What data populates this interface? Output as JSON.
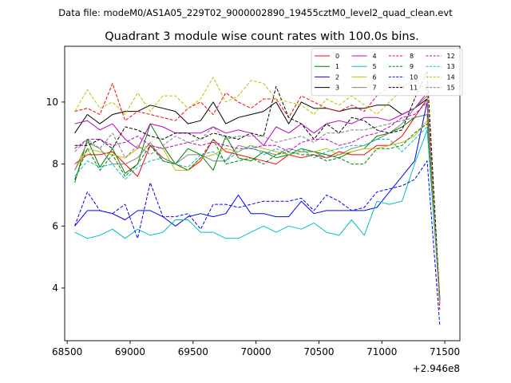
{
  "chart_data": {
    "type": "line",
    "suptitle": "Data file: modeM0/AS1A05_229T02_9000002890_19455cztM0_level2_quad_clean.evt",
    "title": "Quadrant 3 module wise count rates with 100.0s bins.",
    "xlabel": "",
    "ylabel": "",
    "x_offset_label": "+2.946e8",
    "xlim": [
      68480,
      71620
    ],
    "ylim": [
      2.3,
      11.8
    ],
    "xticks": [
      68500,
      69000,
      69500,
      70000,
      70500,
      71000,
      71500
    ],
    "yticks": [
      4,
      6,
      8,
      10
    ],
    "x": [
      68560,
      68660,
      68760,
      68860,
      68960,
      69060,
      69160,
      69260,
      69360,
      69460,
      69560,
      69660,
      69760,
      69860,
      69960,
      70060,
      70160,
      70260,
      70360,
      70460,
      70560,
      70660,
      70760,
      70860,
      70960,
      71060,
      71160,
      71260,
      71360,
      71460
    ],
    "legend": {
      "position": "top-right",
      "ncol": 4
    },
    "series": [
      {
        "name": "0",
        "color": "#ff0000",
        "dash": "solid",
        "values": [
          8.0,
          8.3,
          8.3,
          8.4,
          8.0,
          7.6,
          8.6,
          8.2,
          8.0,
          7.8,
          8.1,
          8.8,
          8.4,
          8.3,
          8.2,
          8.1,
          8.0,
          8.3,
          8.2,
          8.3,
          8.2,
          8.4,
          8.3,
          8.3,
          8.6,
          8.6,
          8.9,
          9.5,
          10.1,
          3.5
        ]
      },
      {
        "name": "1",
        "color": "#008000",
        "dash": "solid",
        "values": [
          7.4,
          8.8,
          7.9,
          8.5,
          7.7,
          8.0,
          9.3,
          8.6,
          8.0,
          8.5,
          8.3,
          7.8,
          8.9,
          8.2,
          8.1,
          8.4,
          8.2,
          8.3,
          8.5,
          8.4,
          8.3,
          8.2,
          8.4,
          8.5,
          8.9,
          9.0,
          9.2,
          9.5,
          9.6,
          3.6
        ]
      },
      {
        "name": "2",
        "color": "#0000ff",
        "dash": "solid",
        "values": [
          6.0,
          6.5,
          6.5,
          6.4,
          6.2,
          6.5,
          6.5,
          6.3,
          6.0,
          6.3,
          6.4,
          6.3,
          6.4,
          7.0,
          6.4,
          6.4,
          6.3,
          6.3,
          6.8,
          6.4,
          6.5,
          6.5,
          6.5,
          6.5,
          6.6,
          7.1,
          7.6,
          8.1,
          10.0,
          3.5
        ]
      },
      {
        "name": "3",
        "color": "#000000",
        "dash": "solid",
        "values": [
          9.0,
          9.6,
          9.3,
          9.6,
          9.7,
          9.7,
          9.9,
          9.8,
          9.7,
          9.3,
          9.4,
          10.0,
          9.3,
          9.5,
          9.6,
          9.7,
          10.0,
          9.3,
          10.0,
          9.8,
          9.8,
          9.7,
          9.8,
          9.8,
          9.9,
          9.9,
          9.6,
          9.8,
          10.1,
          3.6
        ]
      },
      {
        "name": "4",
        "color": "#c000c0",
        "dash": "solid",
        "values": [
          9.3,
          9.4,
          9.1,
          9.3,
          8.8,
          8.5,
          9.3,
          9.2,
          9.0,
          9.0,
          9.0,
          9.2,
          9.0,
          9.1,
          9.0,
          8.6,
          9.2,
          9.0,
          9.3,
          9.0,
          9.3,
          9.4,
          9.3,
          9.5,
          9.5,
          9.4,
          9.6,
          9.8,
          10.3,
          3.6
        ]
      },
      {
        "name": "5",
        "color": "#00c0c0",
        "dash": "solid",
        "values": [
          5.8,
          5.6,
          5.7,
          5.9,
          5.6,
          5.9,
          5.7,
          5.8,
          6.2,
          6.2,
          5.8,
          5.8,
          5.6,
          5.6,
          5.8,
          6.0,
          5.8,
          6.0,
          5.9,
          6.1,
          5.8,
          5.7,
          6.2,
          5.7,
          6.8,
          6.7,
          6.8,
          8.0,
          9.1,
          3.6
        ]
      },
      {
        "name": "6",
        "color": "#c0c000",
        "dash": "solid",
        "values": [
          7.8,
          8.5,
          8.4,
          8.3,
          8.2,
          8.5,
          8.6,
          8.5,
          7.8,
          7.8,
          8.2,
          8.3,
          8.5,
          8.4,
          8.6,
          8.5,
          8.4,
          8.3,
          8.4,
          8.4,
          8.5,
          8.3,
          8.4,
          8.5,
          8.5,
          8.6,
          8.7,
          8.9,
          9.4,
          3.5
        ]
      },
      {
        "name": "7",
        "color": "#808080",
        "dash": "solid",
        "values": [
          7.8,
          8.7,
          8.5,
          8.0,
          8.0,
          8.2,
          8.7,
          8.1,
          8.0,
          8.3,
          8.3,
          8.1,
          8.1,
          8.6,
          8.5,
          8.4,
          8.3,
          8.5,
          8.4,
          8.4,
          8.2,
          8.3,
          8.5,
          8.6,
          8.8,
          9.0,
          9.3,
          9.8,
          10.2,
          3.7
        ]
      },
      {
        "name": "8",
        "color": "#ff0000",
        "dash": "dashed",
        "values": [
          9.7,
          9.8,
          9.6,
          10.6,
          9.4,
          9.7,
          9.6,
          9.5,
          9.4,
          9.8,
          10.0,
          9.6,
          10.3,
          10.0,
          9.8,
          10.1,
          10.1,
          9.5,
          10.2,
          10.0,
          9.8,
          9.7,
          9.9,
          9.7,
          10.2,
          10.5,
          10.5,
          10.7,
          10.4,
          3.3
        ]
      },
      {
        "name": "9",
        "color": "#008000",
        "dash": "dashed",
        "values": [
          7.5,
          8.5,
          7.8,
          8.3,
          7.6,
          8.0,
          8.6,
          8.1,
          8.0,
          7.8,
          8.2,
          8.8,
          8.0,
          8.1,
          8.2,
          8.0,
          8.3,
          8.4,
          8.3,
          8.3,
          8.1,
          8.2,
          8.0,
          8.0,
          8.5,
          8.5,
          8.6,
          9.0,
          9.3,
          3.7
        ]
      },
      {
        "name": "10",
        "color": "#0000ff",
        "dash": "dashed",
        "values": [
          6.0,
          7.1,
          6.5,
          6.4,
          6.7,
          5.6,
          7.4,
          6.3,
          6.3,
          6.4,
          5.9,
          6.7,
          6.7,
          6.6,
          6.7,
          6.8,
          6.8,
          6.8,
          6.9,
          6.5,
          7.0,
          6.8,
          6.5,
          6.6,
          7.1,
          7.2,
          7.3,
          7.5,
          8.1,
          2.8
        ]
      },
      {
        "name": "11",
        "color": "#000000",
        "dash": "dashed",
        "values": [
          8.6,
          8.6,
          8.8,
          8.5,
          9.2,
          9.1,
          8.9,
          8.8,
          9.0,
          9.0,
          8.8,
          9.0,
          8.9,
          8.8,
          9.0,
          8.9,
          10.5,
          9.5,
          9.3,
          8.8,
          9.3,
          9.0,
          9.5,
          9.4,
          9.1,
          9.0,
          9.1,
          10.1,
          11.0,
          3.6
        ]
      },
      {
        "name": "12",
        "color": "#c000c0",
        "dash": "dashed",
        "values": [
          8.5,
          8.8,
          8.8,
          8.6,
          8.7,
          8.9,
          8.6,
          8.5,
          8.6,
          8.7,
          8.6,
          8.7,
          8.6,
          8.5,
          8.5,
          8.6,
          8.6,
          8.4,
          8.7,
          8.8,
          8.8,
          8.6,
          8.7,
          8.9,
          9.0,
          9.2,
          9.5,
          9.6,
          10.0,
          3.5
        ]
      },
      {
        "name": "13",
        "color": "#00c0c0",
        "dash": "dashed",
        "values": [
          7.6,
          8.1,
          7.9,
          8.0,
          7.5,
          7.9,
          8.1,
          8.2,
          8.0,
          7.9,
          8.3,
          8.4,
          8.1,
          8.4,
          8.6,
          8.3,
          8.5,
          8.3,
          8.5,
          8.2,
          8.4,
          8.5,
          8.6,
          8.6,
          8.8,
          8.8,
          8.4,
          8.8,
          9.2,
          3.6
        ]
      },
      {
        "name": "14",
        "color": "#c0c000",
        "dash": "dashed",
        "values": [
          9.7,
          10.4,
          9.8,
          10.0,
          9.6,
          10.3,
          9.7,
          10.2,
          10.2,
          9.8,
          10.1,
          10.8,
          10.0,
          10.2,
          10.7,
          10.6,
          10.1,
          10.0,
          9.9,
          9.6,
          10.1,
          9.9,
          10.2,
          9.9,
          9.6,
          10.0,
          10.4,
          10.8,
          10.3,
          3.5
        ]
      },
      {
        "name": "15",
        "color": "#808080",
        "dash": "dashed",
        "values": [
          8.4,
          8.8,
          8.5,
          9.0,
          8.2,
          8.6,
          8.3,
          8.6,
          8.9,
          8.7,
          8.8,
          9.2,
          8.8,
          8.9,
          8.9,
          8.9,
          8.7,
          8.8,
          8.9,
          8.7,
          9.0,
          9.0,
          9.1,
          9.1,
          9.2,
          9.3,
          9.4,
          9.5,
          9.6,
          3.6
        ]
      }
    ]
  }
}
